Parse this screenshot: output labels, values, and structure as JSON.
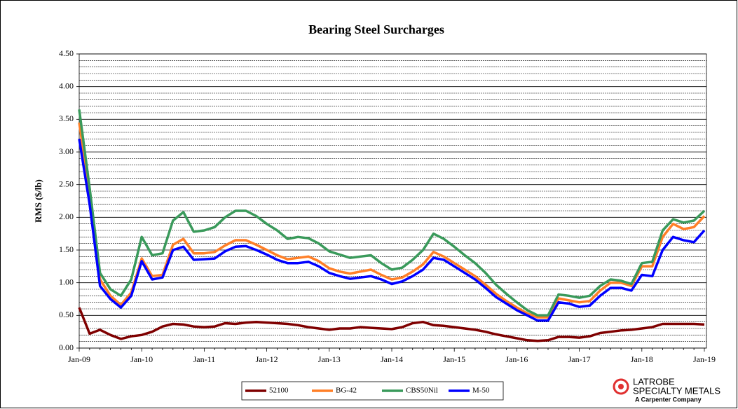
{
  "chart_data": {
    "type": "line",
    "title": "Bearing Steel Surcharges",
    "y_label": "RMS ($/lb)",
    "categories": [
      "Jan-09",
      null,
      null,
      null,
      null,
      null,
      "Jan-10",
      null,
      null,
      null,
      null,
      null,
      "Jan-11",
      null,
      null,
      null,
      null,
      null,
      "Jan-12",
      null,
      null,
      null,
      null,
      null,
      "Jan-13",
      null,
      null,
      null,
      null,
      null,
      "Jan-14",
      null,
      null,
      null,
      null,
      null,
      "Jan-15",
      null,
      null,
      null,
      null,
      null,
      "Jan-16",
      null,
      null,
      null,
      null,
      null,
      "Jan-17",
      null,
      null,
      null,
      null,
      null,
      "Jan-18",
      null,
      null,
      null,
      null,
      null,
      "Jan-19"
    ],
    "ylim": [
      0,
      4.5
    ],
    "yticks": [
      {
        "value": 0,
        "label": "0.00"
      },
      {
        "value": 0.5,
        "label": "0.50"
      },
      {
        "value": 1,
        "label": "1.00"
      },
      {
        "value": 1.5,
        "label": "1.50"
      },
      {
        "value": 2,
        "label": "2.00"
      },
      {
        "value": 2.5,
        "label": "2.50"
      },
      {
        "value": 3,
        "label": "3.00"
      },
      {
        "value": 3.5,
        "label": "3.50"
      },
      {
        "value": 4,
        "label": "4.00"
      },
      {
        "value": 4.5,
        "label": "4.50"
      }
    ],
    "y_minor_gridlines": [
      0.1,
      0.2,
      0.3,
      0.4,
      0.6,
      0.7,
      0.8,
      0.9,
      1.1,
      1.2,
      1.3,
      1.4,
      1.6,
      1.7,
      1.8,
      1.9,
      2.1,
      2.2,
      2.3,
      2.4,
      2.6,
      2.7,
      2.8,
      2.9,
      3.1,
      3.2,
      3.3,
      3.4,
      3.6,
      3.7,
      3.8,
      3.9,
      4.1,
      4.2,
      4.3,
      4.4
    ],
    "grid": true,
    "legend": "bottom",
    "series": [
      {
        "name": "52100",
        "color": "#7f0000",
        "values": [
          0.62,
          0.22,
          0.28,
          0.2,
          0.14,
          0.18,
          0.2,
          0.25,
          0.33,
          0.37,
          0.36,
          0.33,
          0.32,
          0.33,
          0.38,
          0.37,
          0.39,
          0.4,
          0.39,
          0.38,
          0.37,
          0.35,
          0.32,
          0.3,
          0.28,
          0.3,
          0.3,
          0.32,
          0.31,
          0.3,
          0.29,
          0.32,
          0.38,
          0.4,
          0.35,
          0.34,
          0.32,
          0.3,
          0.28,
          0.25,
          0.21,
          0.18,
          0.15,
          0.12,
          0.11,
          0.12,
          0.17,
          0.17,
          0.16,
          0.18,
          0.23,
          0.25,
          0.27,
          0.28,
          0.3,
          0.32,
          0.37,
          0.37,
          0.37,
          0.37,
          0.36
        ]
      },
      {
        "name": "BG-42",
        "color": "#ff7f27",
        "values": [
          3.45,
          2.35,
          1.05,
          0.8,
          0.66,
          0.85,
          1.37,
          1.1,
          1.12,
          1.58,
          1.67,
          1.45,
          1.45,
          1.47,
          1.57,
          1.65,
          1.65,
          1.58,
          1.5,
          1.42,
          1.36,
          1.38,
          1.4,
          1.33,
          1.22,
          1.17,
          1.14,
          1.17,
          1.2,
          1.12,
          1.05,
          1.08,
          1.17,
          1.28,
          1.47,
          1.4,
          1.3,
          1.2,
          1.1,
          0.97,
          0.83,
          0.72,
          0.62,
          0.53,
          0.47,
          0.47,
          0.76,
          0.73,
          0.7,
          0.72,
          0.88,
          1.0,
          1.0,
          0.95,
          1.25,
          1.25,
          1.7,
          1.9,
          1.82,
          1.85,
          2.02
        ]
      },
      {
        "name": "CBS50Nil",
        "color": "#3a9a5b",
        "values": [
          3.65,
          2.45,
          1.15,
          0.9,
          0.8,
          1.05,
          1.7,
          1.42,
          1.45,
          1.95,
          2.08,
          1.78,
          1.8,
          1.85,
          2.0,
          2.1,
          2.1,
          2.02,
          1.9,
          1.8,
          1.67,
          1.7,
          1.68,
          1.6,
          1.48,
          1.43,
          1.38,
          1.4,
          1.42,
          1.3,
          1.2,
          1.23,
          1.35,
          1.5,
          1.75,
          1.67,
          1.55,
          1.42,
          1.3,
          1.15,
          0.97,
          0.83,
          0.7,
          0.58,
          0.5,
          0.5,
          0.82,
          0.8,
          0.77,
          0.8,
          0.95,
          1.05,
          1.03,
          0.98,
          1.3,
          1.32,
          1.8,
          1.97,
          1.92,
          1.95,
          2.1
        ]
      },
      {
        "name": "M-50",
        "color": "#0000ff",
        "values": [
          3.2,
          2.2,
          0.95,
          0.75,
          0.62,
          0.8,
          1.33,
          1.05,
          1.08,
          1.5,
          1.55,
          1.35,
          1.36,
          1.37,
          1.48,
          1.55,
          1.56,
          1.5,
          1.43,
          1.35,
          1.3,
          1.3,
          1.32,
          1.25,
          1.15,
          1.1,
          1.06,
          1.08,
          1.1,
          1.05,
          0.98,
          1.02,
          1.1,
          1.2,
          1.38,
          1.35,
          1.25,
          1.15,
          1.05,
          0.92,
          0.78,
          0.68,
          0.58,
          0.5,
          0.42,
          0.42,
          0.7,
          0.68,
          0.63,
          0.65,
          0.8,
          0.92,
          0.92,
          0.88,
          1.12,
          1.1,
          1.5,
          1.7,
          1.65,
          1.62,
          1.8
        ]
      }
    ]
  },
  "logo": {
    "name": "LATROBE",
    "line2": "SPECIALTY METALS",
    "tagline": "A Carpenter Company"
  }
}
